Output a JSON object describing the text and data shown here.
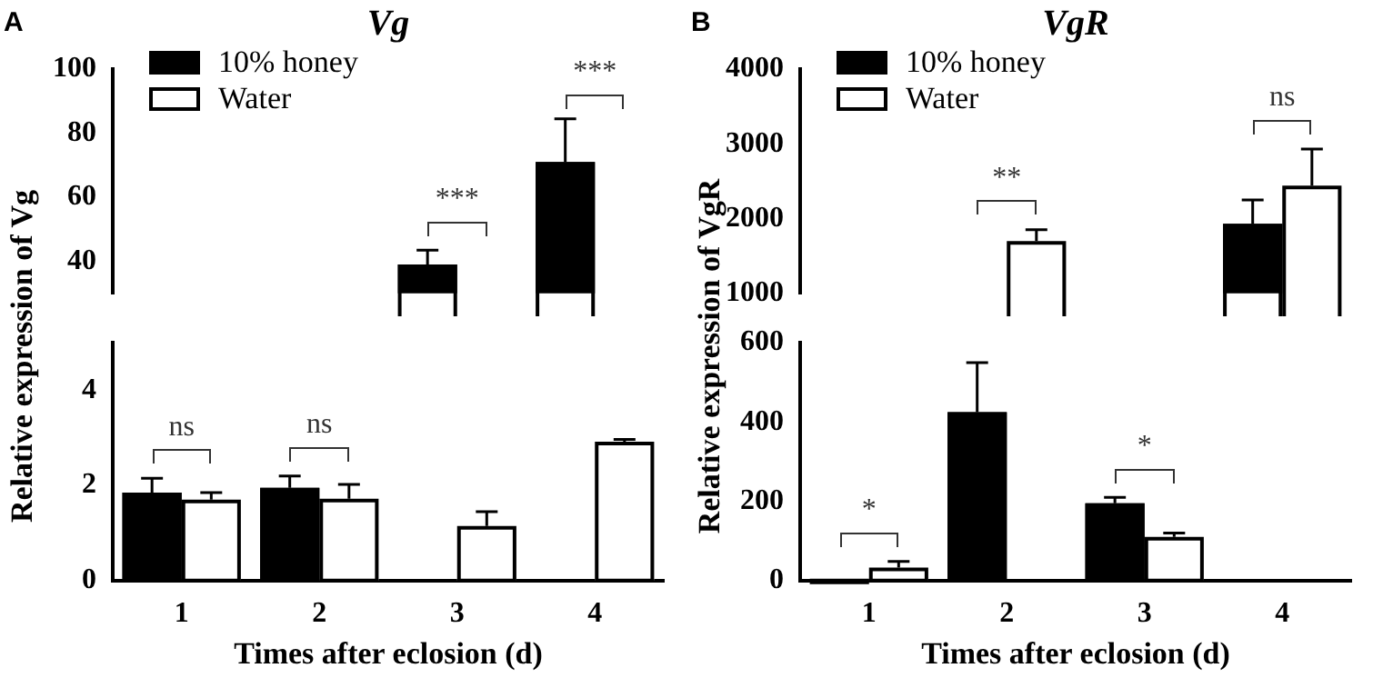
{
  "chart_data": [
    {
      "type": "bar",
      "title": "Vg",
      "annotations": [
        "A",
        {
          "text": "***",
          "x": "3",
          "y": 39
        },
        {
          "text": "***",
          "x": "4",
          "y": 71
        }
      ],
      "categories": [
        "1",
        "2",
        "3",
        "4"
      ],
      "series": [
        {
          "name": "10% honey",
          "color": "#000000",
          "values": [
            null,
            null,
            39,
            71
          ],
          "errors": [
            null,
            null,
            4.5,
            13.5
          ]
        },
        {
          "name": "Water",
          "color": "#ffffff",
          "values": [
            null,
            null,
            null,
            null
          ]
        }
      ],
      "ylim": [
        30,
        100
      ],
      "yticks": [
        40,
        60,
        80,
        100
      ],
      "tick_labels": "y",
      "legend": "top left"
    },
    {
      "type": "bar",
      "xlabel": "Times after eclosion (d)",
      "ylabel": "Relative expression of Vg",
      "annotations": [
        {
          "text": "ns",
          "x": "1",
          "y": 1.85
        },
        {
          "text": "ns",
          "x": "2",
          "y": 1.95
        }
      ],
      "categories": [
        "1",
        "2",
        "3",
        "4"
      ],
      "series": [
        {
          "color": "#000000",
          "values": [
            1.85,
            1.95,
            null,
            null
          ],
          "errors": [
            0.3,
            0.25,
            null,
            null
          ]
        },
        {
          "color": "#ffffff",
          "values": [
            1.7,
            1.72,
            1.15,
            2.92
          ],
          "errors": [
            0.15,
            0.3,
            0.3,
            0.05
          ]
        }
      ],
      "ylim": [
        0,
        5
      ],
      "yticks": [
        0,
        2,
        4
      ]
    },
    {
      "type": "bar",
      "title": "VgR",
      "annotations": [
        "B",
        {
          "text": "**",
          "x": "2",
          "y": 1700
        },
        {
          "text": "ns",
          "x": "4",
          "y": 2440
        }
      ],
      "categories": [
        "1",
        "2",
        "3",
        "4"
      ],
      "series": [
        {
          "name": "10% honey",
          "color": "#000000",
          "values": [
            null,
            null,
            null,
            1930
          ],
          "errors": [
            null,
            null,
            null,
            320
          ]
        },
        {
          "name": "Water",
          "color": "#ffffff",
          "values": [
            null,
            1700,
            null,
            2440
          ],
          "errors": [
            null,
            150,
            null,
            490
          ]
        }
      ],
      "ylim": [
        1000,
        4000
      ],
      "yticks": [
        1000,
        2000,
        3000,
        4000
      ],
      "tick_labels": "y",
      "legend": "top left"
    },
    {
      "type": "bar",
      "xlabel": "Times after eclosion (d)",
      "ylabel": "Relative expression of VgR",
      "annotations": [
        {
          "text": "*",
          "x": "1",
          "y": 33
        },
        {
          "text": "*",
          "x": "3",
          "y": 195
        }
      ],
      "categories": [
        "1",
        "2",
        "3",
        "4"
      ],
      "series": [
        {
          "color": "#000000",
          "values": [
            0,
            425,
            195,
            null
          ],
          "errors": [
            null,
            125,
            15,
            null
          ]
        },
        {
          "color": "#ffffff",
          "values": [
            33,
            null,
            110,
            null
          ],
          "errors": [
            15,
            null,
            10,
            null
          ]
        }
      ],
      "ylim": [
        0,
        600
      ],
      "yticks": [
        0,
        200,
        400,
        600
      ]
    }
  ]
}
